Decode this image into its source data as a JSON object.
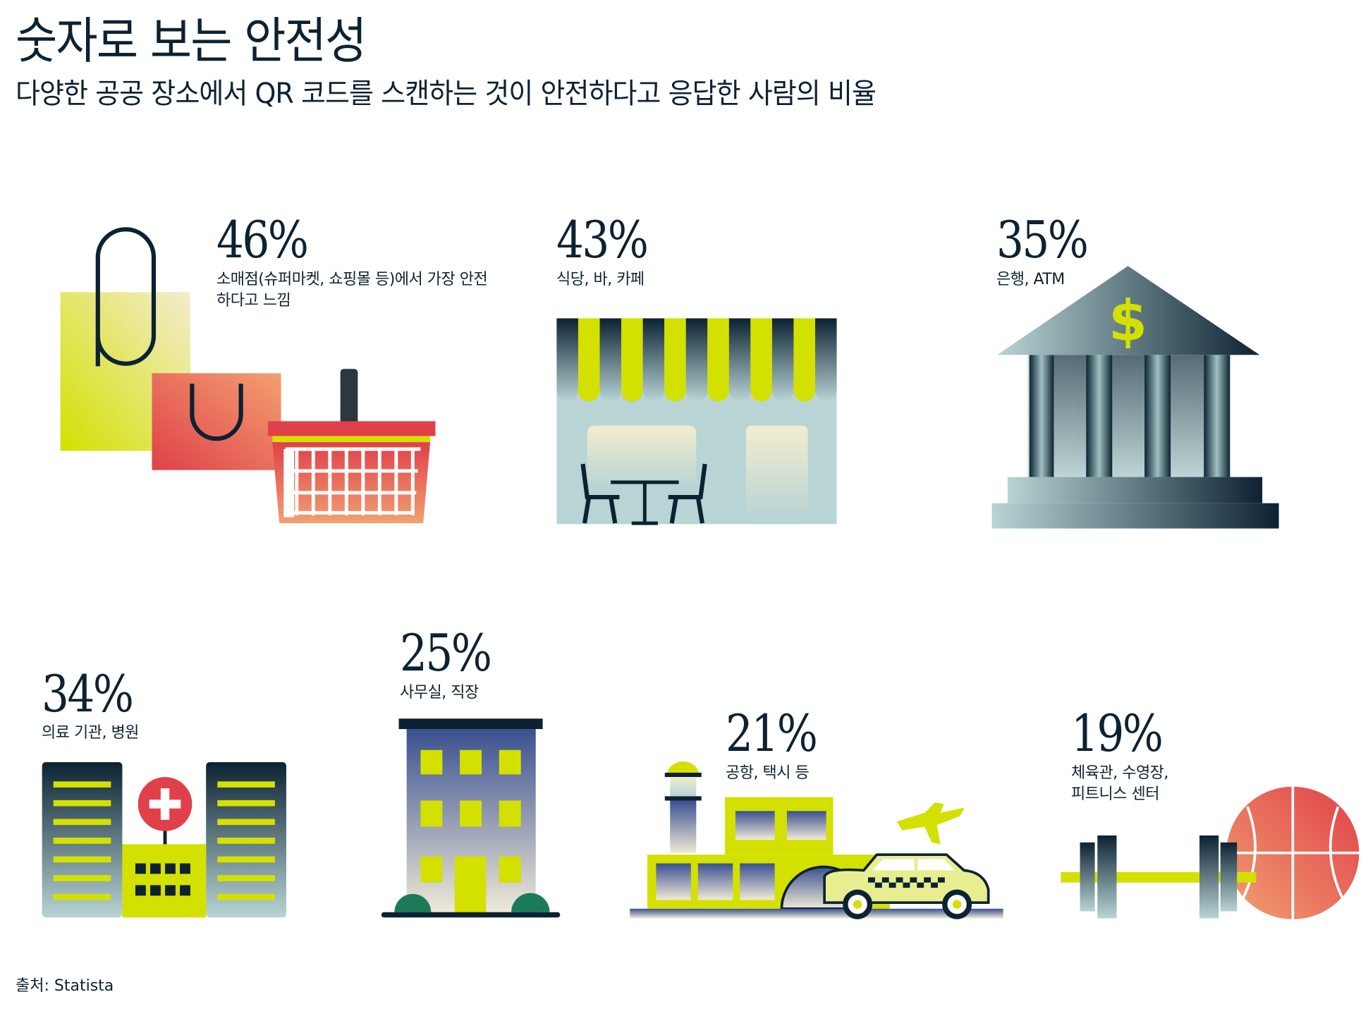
{
  "title": "숫자로 보는 안전성",
  "subtitle": "다양한 공공 장소에서 QR 코드를 스캔하는 것이 안전하다고 응답한 사람의 비율",
  "items": [
    {
      "value": "46%",
      "label1": "소매점(슈퍼마켓, 쇼핑몰 등)에서 가장 안전",
      "label2": "하다고 느낌",
      "icon": "shopping-bags-basket-icon"
    },
    {
      "value": "43%",
      "label1": "식당, 바, 카페",
      "icon": "cafe-storefront-icon"
    },
    {
      "value": "35%",
      "label1": "은행, ATM",
      "icon": "bank-icon"
    },
    {
      "value": "34%",
      "label1": "의료 기관, 병원",
      "icon": "hospital-icon"
    },
    {
      "value": "25%",
      "label1": "사무실, 직장",
      "icon": "office-building-icon"
    },
    {
      "value": "21%",
      "label1": "공항, 택시 등",
      "icon": "airport-taxi-icon"
    },
    {
      "value": "19%",
      "label1": "체육관, 수영장,",
      "label2": "피트니스 센터",
      "icon": "gym-dumbbell-ball-icon"
    }
  ],
  "source": "출처: Statista",
  "colors": {
    "text": "#0c2233",
    "accent_yellow": "#d4e000",
    "red": "#e0404a",
    "teal": "#b8d4d4"
  }
}
